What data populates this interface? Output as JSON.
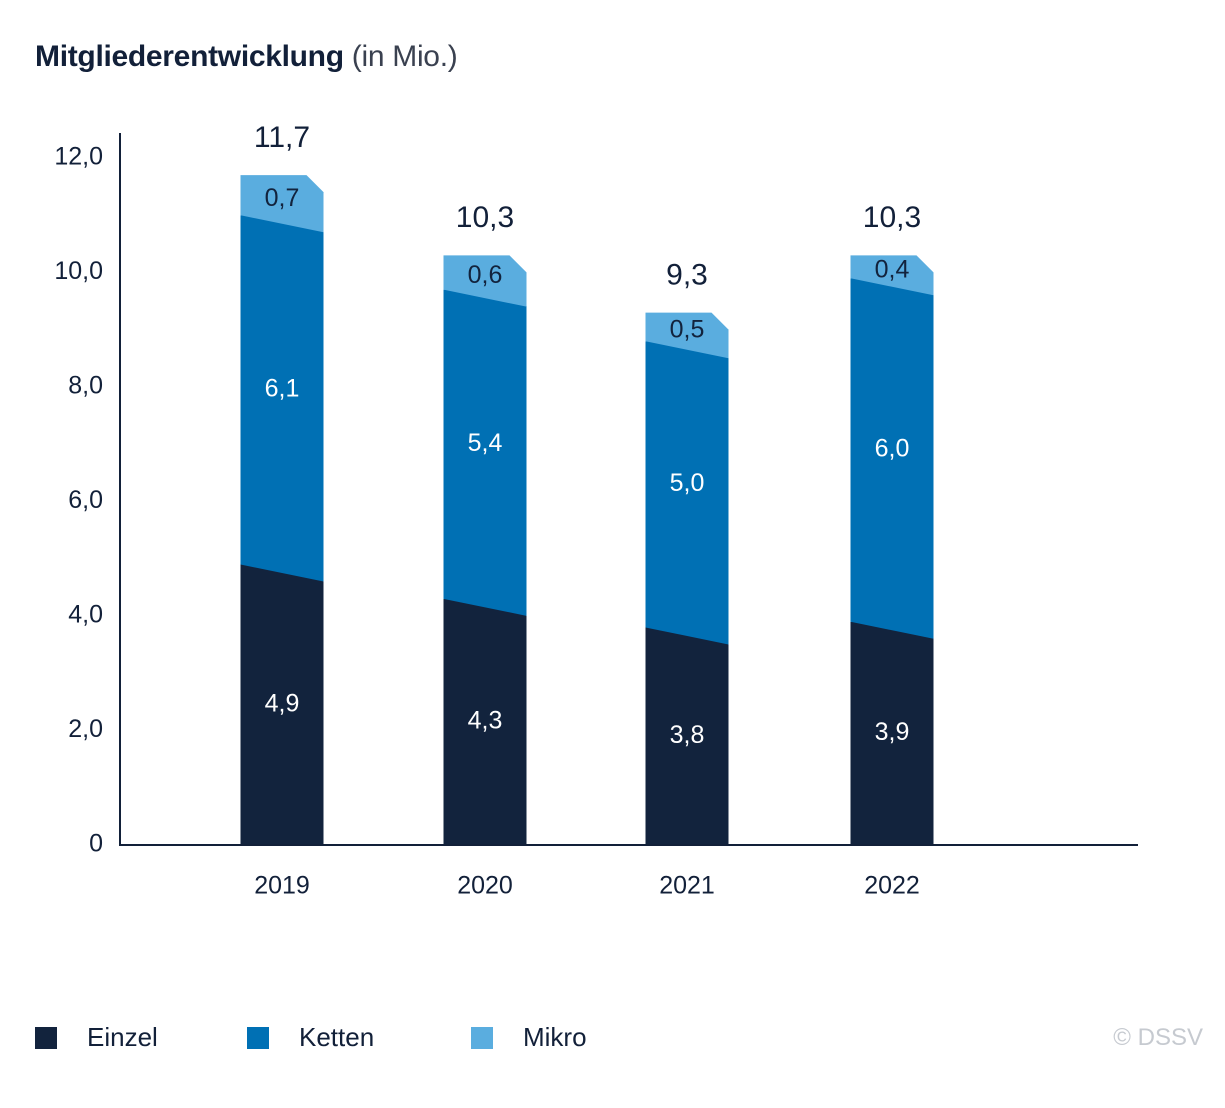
{
  "title": {
    "main": "Mitgliederentwicklung",
    "unit": "(in Mio.)"
  },
  "chart_data": {
    "type": "bar",
    "stacked": true,
    "categories": [
      "2019",
      "2020",
      "2021",
      "2022"
    ],
    "series": [
      {
        "name": "Einzel",
        "values": [
          4.9,
          4.3,
          3.8,
          3.9
        ],
        "labels": [
          "4,9",
          "4,3",
          "3,8",
          "3,9"
        ],
        "color": "#12233d",
        "label_color": "#ffffff"
      },
      {
        "name": "Ketten",
        "values": [
          6.1,
          5.4,
          5.0,
          6.0
        ],
        "labels": [
          "6,1",
          "5,4",
          "5,0",
          "6,0"
        ],
        "color": "#0070b4",
        "label_color": "#ffffff"
      },
      {
        "name": "Mikro",
        "values": [
          0.7,
          0.6,
          0.5,
          0.4
        ],
        "labels": [
          "0,7",
          "0,6",
          "0,5",
          "0,4"
        ],
        "color": "#5aaddf",
        "label_color": "#12233d"
      }
    ],
    "totals": [
      11.7,
      10.3,
      9.3,
      10.3
    ],
    "total_labels": [
      "11,7",
      "10,3",
      "9,3",
      "10,3"
    ],
    "ylim": [
      0,
      12
    ],
    "yticks": [
      0,
      2,
      4,
      6,
      8,
      10,
      12
    ],
    "ytick_labels": [
      "0",
      "2,0",
      "4,0",
      "6,0",
      "8,0",
      "10,0",
      "12,0"
    ],
    "grid": false,
    "legend_position": "bottom-left"
  },
  "legend": {
    "items": [
      {
        "label": "Einzel",
        "color": "#12233d"
      },
      {
        "label": "Ketten",
        "color": "#0070b4"
      },
      {
        "label": "Mikro",
        "color": "#5aaddf"
      }
    ]
  },
  "credit": "© DSSV"
}
